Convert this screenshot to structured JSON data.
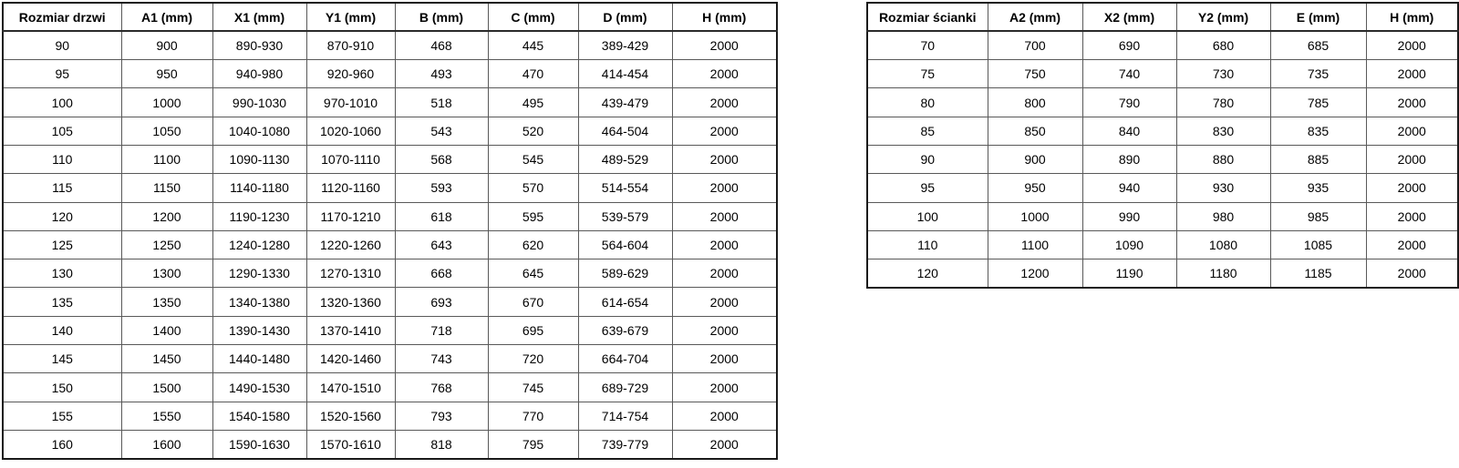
{
  "door_table": {
    "name": "door-size-table",
    "headers": [
      "Rozmiar drzwi",
      "A1 (mm)",
      "X1 (mm)",
      "Y1 (mm)",
      "B (mm)",
      "C (mm)",
      "D (mm)",
      "H (mm)"
    ],
    "rows": [
      [
        "90",
        "900",
        "890-930",
        "870-910",
        "468",
        "445",
        "389-429",
        "2000"
      ],
      [
        "95",
        "950",
        "940-980",
        "920-960",
        "493",
        "470",
        "414-454",
        "2000"
      ],
      [
        "100",
        "1000",
        "990-1030",
        "970-1010",
        "518",
        "495",
        "439-479",
        "2000"
      ],
      [
        "105",
        "1050",
        "1040-1080",
        "1020-1060",
        "543",
        "520",
        "464-504",
        "2000"
      ],
      [
        "110",
        "1100",
        "1090-1130",
        "1070-1110",
        "568",
        "545",
        "489-529",
        "2000"
      ],
      [
        "115",
        "1150",
        "1140-1180",
        "1120-1160",
        "593",
        "570",
        "514-554",
        "2000"
      ],
      [
        "120",
        "1200",
        "1190-1230",
        "1170-1210",
        "618",
        "595",
        "539-579",
        "2000"
      ],
      [
        "125",
        "1250",
        "1240-1280",
        "1220-1260",
        "643",
        "620",
        "564-604",
        "2000"
      ],
      [
        "130",
        "1300",
        "1290-1330",
        "1270-1310",
        "668",
        "645",
        "589-629",
        "2000"
      ],
      [
        "135",
        "1350",
        "1340-1380",
        "1320-1360",
        "693",
        "670",
        "614-654",
        "2000"
      ],
      [
        "140",
        "1400",
        "1390-1430",
        "1370-1410",
        "718",
        "695",
        "639-679",
        "2000"
      ],
      [
        "145",
        "1450",
        "1440-1480",
        "1420-1460",
        "743",
        "720",
        "664-704",
        "2000"
      ],
      [
        "150",
        "1500",
        "1490-1530",
        "1470-1510",
        "768",
        "745",
        "689-729",
        "2000"
      ],
      [
        "155",
        "1550",
        "1540-1580",
        "1520-1560",
        "793",
        "770",
        "714-754",
        "2000"
      ],
      [
        "160",
        "1600",
        "1590-1630",
        "1570-1610",
        "818",
        "795",
        "739-779",
        "2000"
      ]
    ]
  },
  "wall_table": {
    "name": "wall-size-table",
    "headers": [
      "Rozmiar ścianki",
      "A2 (mm)",
      "X2 (mm)",
      "Y2 (mm)",
      "E (mm)",
      "H (mm)"
    ],
    "rows": [
      [
        "70",
        "700",
        "690",
        "680",
        "685",
        "2000"
      ],
      [
        "75",
        "750",
        "740",
        "730",
        "735",
        "2000"
      ],
      [
        "80",
        "800",
        "790",
        "780",
        "785",
        "2000"
      ],
      [
        "85",
        "850",
        "840",
        "830",
        "835",
        "2000"
      ],
      [
        "90",
        "900",
        "890",
        "880",
        "885",
        "2000"
      ],
      [
        "95",
        "950",
        "940",
        "930",
        "935",
        "2000"
      ],
      [
        "100",
        "1000",
        "990",
        "980",
        "985",
        "2000"
      ],
      [
        "110",
        "1100",
        "1090",
        "1080",
        "1085",
        "2000"
      ],
      [
        "120",
        "1200",
        "1190",
        "1180",
        "1185",
        "2000"
      ]
    ]
  },
  "colors": {
    "background": "#ffffff",
    "text": "#000000",
    "border_outer": "#1a1a1a",
    "border_inner": "#595959"
  }
}
